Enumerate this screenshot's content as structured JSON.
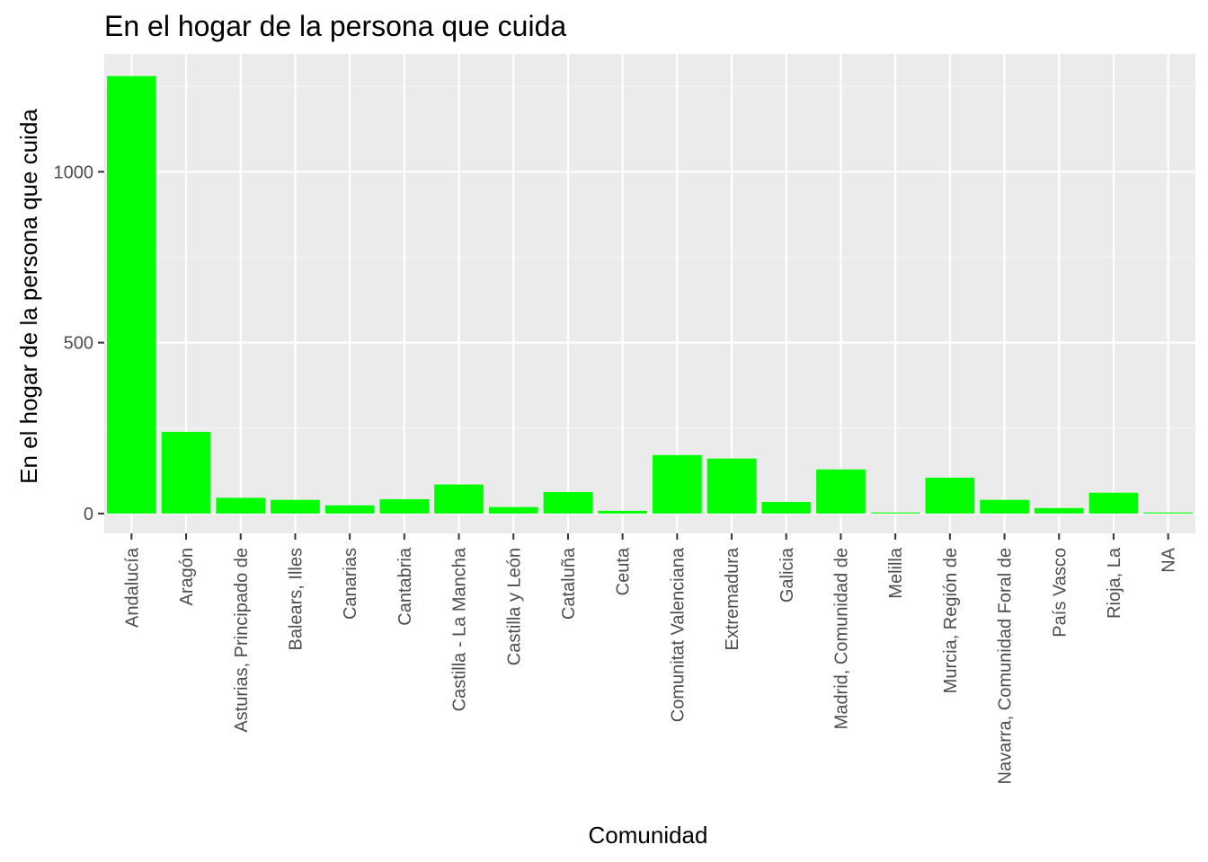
{
  "colors": {
    "panel": "#ebebeb",
    "grid_major": "#ffffff",
    "grid_minor": "#f5f5f5",
    "bar": "#00ff00",
    "tick": "#333333"
  },
  "chart_data": {
    "type": "bar",
    "title": "En el hogar de la persona que cuida",
    "xlabel": "Comunidad",
    "ylabel": "En el hogar de la persona que cuida",
    "categories": [
      "Andalucía",
      "Aragón",
      "Asturias, Principado de",
      "Balears, Illes",
      "Canarias",
      "Cantabria",
      "Castilla - La Mancha",
      "Castilla y León",
      "Cataluña",
      "Ceuta",
      "Comunitat Valenciana",
      "Extremadura",
      "Galicia",
      "Madrid, Comunidad de",
      "Melilla",
      "Murcia, Región de",
      "Navarra, Comunidad Foral de",
      "País Vasco",
      "Rioja, La",
      "NA"
    ],
    "values": [
      1280,
      239,
      46,
      40,
      24,
      42,
      85,
      19,
      63,
      8,
      171,
      161,
      34,
      129,
      3,
      105,
      40,
      16,
      61,
      3
    ],
    "ylim": [
      -58,
      1345
    ],
    "yticks": [
      0,
      500,
      1000
    ],
    "ytick_labels": [
      "0",
      "500",
      "1000"
    ],
    "grid": true,
    "legend": "none"
  }
}
